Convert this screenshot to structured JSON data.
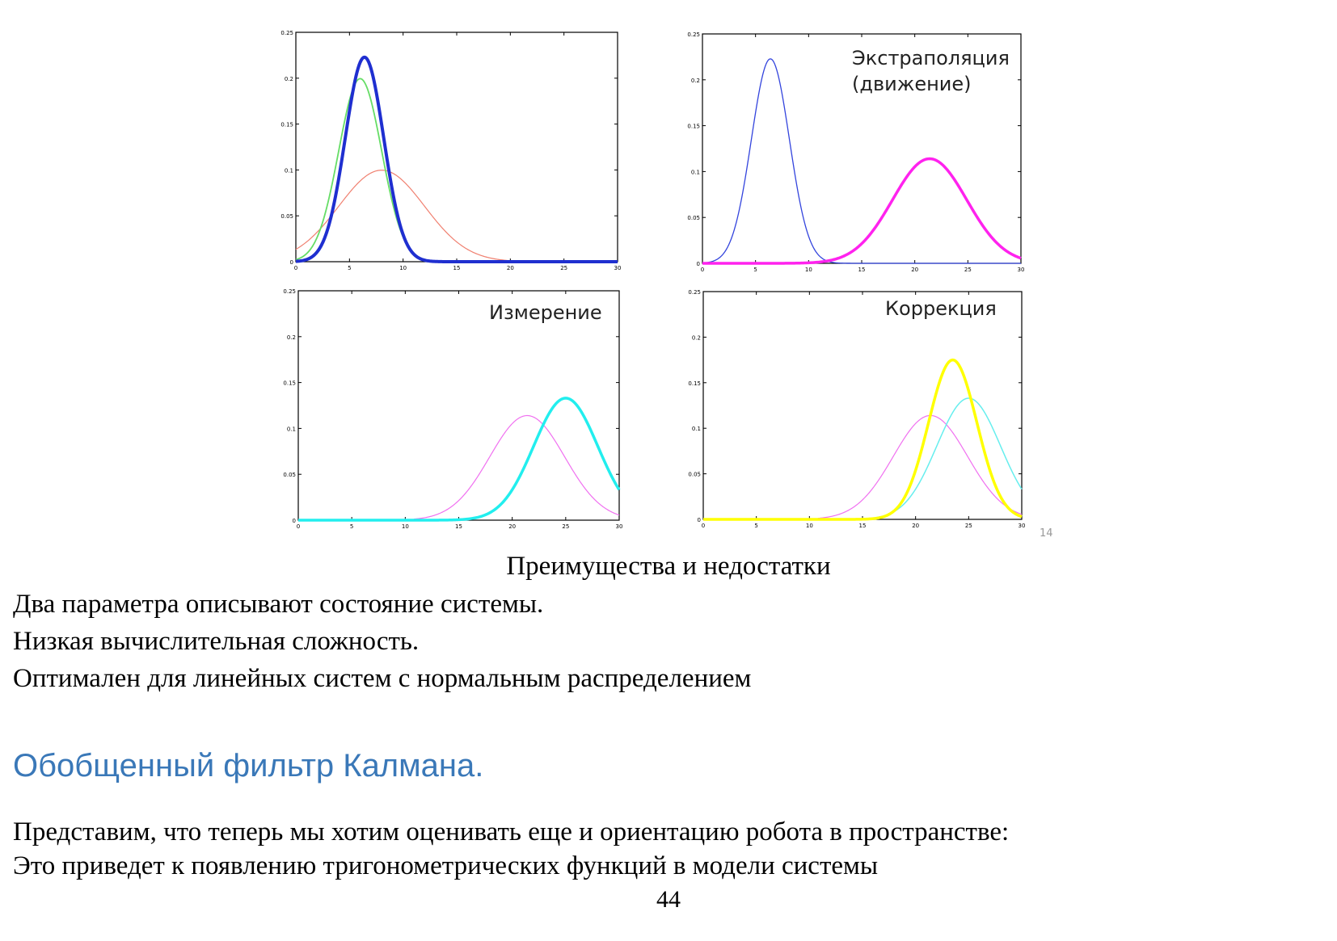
{
  "chart_data": [
    {
      "type": "line",
      "title": "",
      "xlim": [
        0,
        30
      ],
      "ylim": [
        0,
        0.25
      ],
      "xticks": [
        0,
        5,
        10,
        15,
        20,
        25,
        30
      ],
      "yticks": [
        0,
        0.05,
        0.1,
        0.15,
        0.2,
        0.25
      ],
      "tick_labels_x": [
        "0",
        "5",
        "10",
        "15",
        "20",
        "25",
        "30"
      ],
      "tick_labels_y": [
        "0",
        "0.05",
        "0.1",
        "0.15",
        "0.2",
        "0.25"
      ],
      "series": [
        {
          "color": "#f08070",
          "width": 1.2,
          "mean": 8,
          "sd": 4,
          "x_range": [
            0,
            30
          ]
        },
        {
          "color": "#66dd66",
          "width": 1.8,
          "mean": 6,
          "sd": 2,
          "x_range": [
            0,
            30
          ]
        },
        {
          "color": "#1f2fd0",
          "width": 4,
          "mean": 6.4,
          "sd": 1.79,
          "x_range": [
            0,
            30
          ]
        }
      ]
    },
    {
      "type": "line",
      "title": "Экстраполяция\n(движение)",
      "xlim": [
        0,
        30
      ],
      "ylim": [
        0,
        0.25
      ],
      "xticks": [
        0,
        5,
        10,
        15,
        20,
        25,
        30
      ],
      "yticks": [
        0,
        0.05,
        0.1,
        0.15,
        0.2,
        0.25
      ],
      "tick_labels_x": [
        "0",
        "5",
        "10",
        "15",
        "20",
        "25",
        "30"
      ],
      "tick_labels_y": [
        "0",
        "0.05",
        "0.1",
        "0.15",
        "0.2",
        "0.25"
      ],
      "series": [
        {
          "color": "#3344dd",
          "width": 1.3,
          "mean": 6.4,
          "sd": 1.79,
          "x_range": [
            0,
            30
          ]
        },
        {
          "color": "#ff22ee",
          "width": 3.5,
          "mean": 21.4,
          "sd": 3.5,
          "x_range": [
            0,
            30
          ]
        }
      ]
    },
    {
      "type": "line",
      "title": "Измерение",
      "xlim": [
        0,
        30
      ],
      "ylim": [
        0,
        0.25
      ],
      "xticks": [
        0,
        5,
        10,
        15,
        20,
        25,
        30
      ],
      "yticks": [
        0,
        0.05,
        0.1,
        0.15,
        0.2,
        0.25
      ],
      "tick_labels_x": [
        "0",
        "5",
        "10",
        "15",
        "20",
        "25",
        "30"
      ],
      "tick_labels_y": [
        "0",
        "0.05",
        "0.1",
        "0.15",
        "0.2",
        "0.25"
      ],
      "series": [
        {
          "color": "#f070f0",
          "width": 1.2,
          "mean": 21.4,
          "sd": 3.5,
          "x_range": [
            10.8,
            30
          ]
        },
        {
          "color": "#22eeee",
          "width": 3.5,
          "mean": 25,
          "sd": 3,
          "x_range": [
            0,
            30
          ]
        }
      ]
    },
    {
      "type": "line",
      "title": "Коррекция",
      "xlim": [
        0,
        30
      ],
      "ylim": [
        0,
        0.25
      ],
      "xticks": [
        0,
        5,
        10,
        15,
        20,
        25,
        30
      ],
      "yticks": [
        0,
        0.05,
        0.1,
        0.15,
        0.2,
        0.25
      ],
      "tick_labels_x": [
        "0",
        "5",
        "10",
        "15",
        "20",
        "25",
        "30"
      ],
      "tick_labels_y": [
        "0",
        "0.05",
        "0.1",
        "0.15",
        "0.2",
        "0.25"
      ],
      "series": [
        {
          "color": "#f070f0",
          "width": 1.2,
          "mean": 21.4,
          "sd": 3.5,
          "x_range": [
            10.8,
            30
          ]
        },
        {
          "color": "#66eeee",
          "width": 1.5,
          "mean": 25,
          "sd": 3,
          "x_range": [
            15,
            30
          ]
        },
        {
          "color": "#ffff00",
          "width": 3.5,
          "mean": 23.5,
          "sd": 2.28,
          "x_range": [
            0,
            30
          ]
        }
      ]
    }
  ],
  "slide_number": "14",
  "caption": "Преимущества и недостатки",
  "advantages": [
    "Два параметра описывают состояние системы.",
    "Низкая вычислительная сложность.",
    "Оптимален для линейных систем с нормальным распределением"
  ],
  "section_heading": "Обобщенный фильтр Калмана.",
  "heading_color": "#3a78b8",
  "body_lines": [
    "Представим, что теперь мы хотим оценивать еще и ориентацию робота в пространстве:",
    "Это приведет к появлению тригонометрических функций в модели системы"
  ],
  "page_number": "44"
}
